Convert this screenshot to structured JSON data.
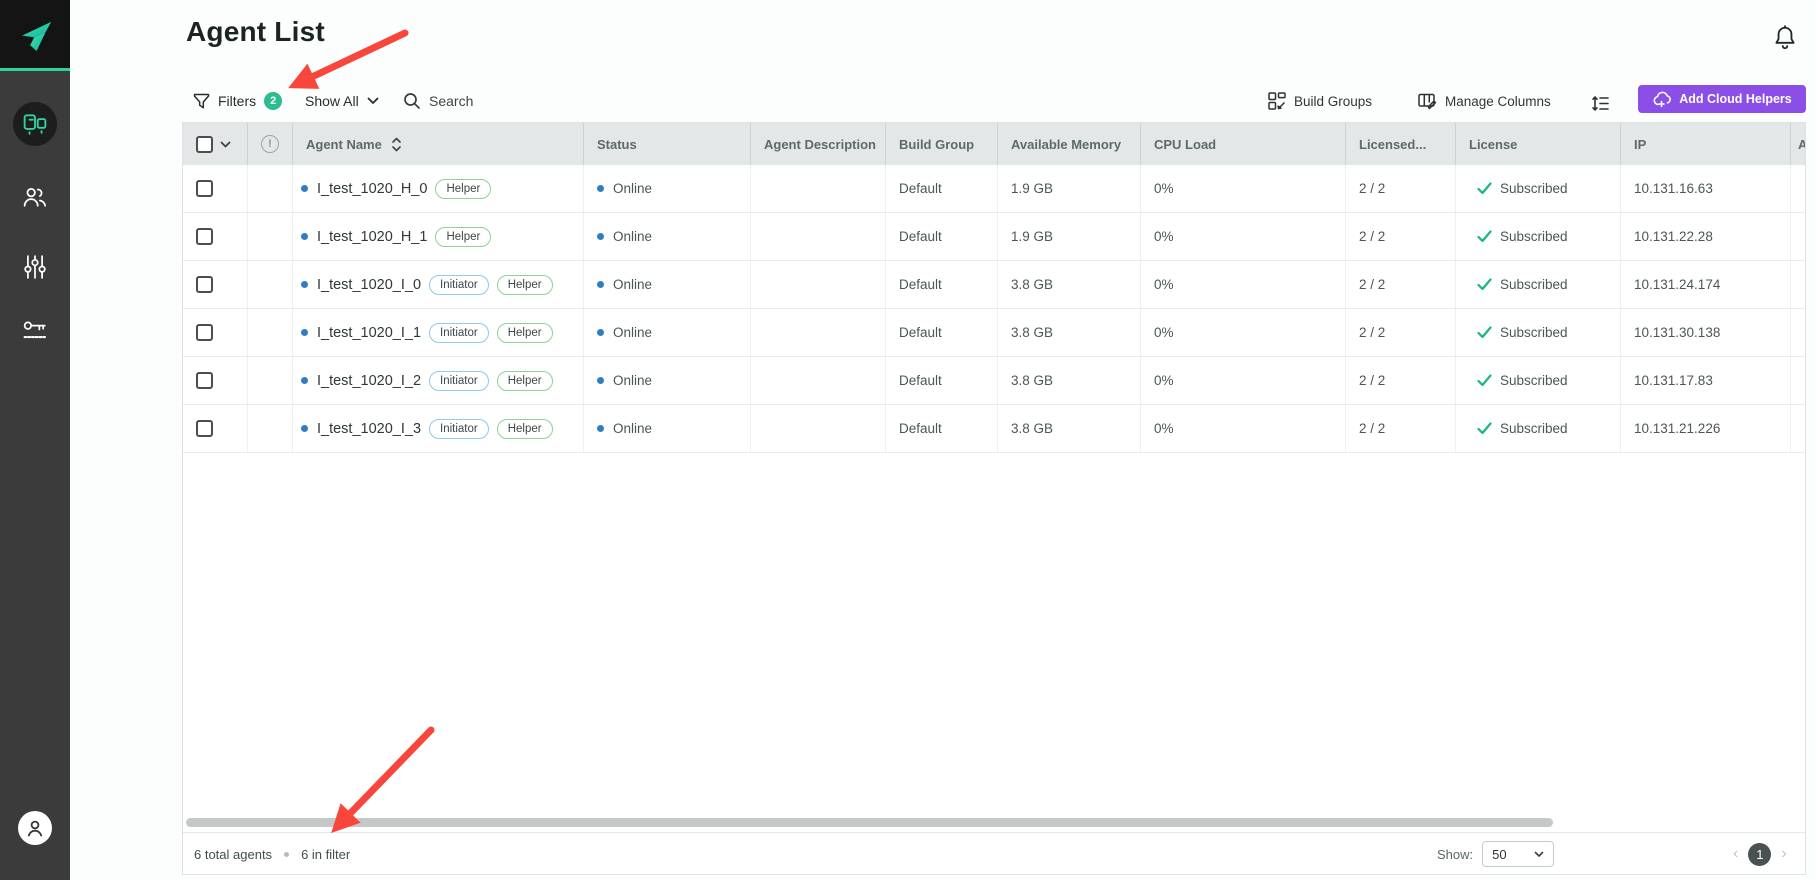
{
  "colors": {
    "accent_green": "#2abd8f",
    "purple": "#8b4fe8",
    "blue_dot": "#2d7ec4",
    "check_green": "#1cb38b",
    "arrow_red": "#f9463c",
    "sidebar_bg": "#3b3b3b"
  },
  "sidebar": {
    "logo_icon": "brand-logo-icon",
    "items": [
      {
        "icon": "agents-icon",
        "active": true
      },
      {
        "icon": "users-icon",
        "active": false
      },
      {
        "icon": "settings-sliders-icon",
        "active": false
      },
      {
        "icon": "license-key-icon",
        "active": false
      }
    ],
    "avatar_icon": "user-avatar-icon"
  },
  "header": {
    "title": "Agent List",
    "bell_icon": "notifications-bell-icon"
  },
  "toolbar": {
    "filters_label": "Filters",
    "filters_badge": "2",
    "show_all_label": "Show All",
    "search_label": "Search",
    "build_groups_label": "Build Groups",
    "manage_columns_label": "Manage Columns",
    "add_cloud_helpers_label": "Add Cloud Helpers"
  },
  "table": {
    "headers": {
      "agent_name": "Agent Name",
      "status": "Status",
      "agent_description": "Agent Description",
      "build_group": "Build Group",
      "available_memory": "Available Memory",
      "cpu_load": "CPU Load",
      "licensed": "Licensed...",
      "license": "License",
      "ip": "IP",
      "clipped": "A"
    },
    "rows": [
      {
        "name": "I_test_1020_H_0",
        "badges": [
          "Helper"
        ],
        "status": "Online",
        "description": "",
        "build_group": "Default",
        "memory": "1.9 GB",
        "cpu": "0%",
        "licensed": "2 / 2",
        "license": "Subscribed",
        "ip": "10.131.16.63"
      },
      {
        "name": "I_test_1020_H_1",
        "badges": [
          "Helper"
        ],
        "status": "Online",
        "description": "",
        "build_group": "Default",
        "memory": "1.9 GB",
        "cpu": "0%",
        "licensed": "2 / 2",
        "license": "Subscribed",
        "ip": "10.131.22.28"
      },
      {
        "name": "I_test_1020_I_0",
        "badges": [
          "Initiator",
          "Helper"
        ],
        "status": "Online",
        "description": "",
        "build_group": "Default",
        "memory": "3.8 GB",
        "cpu": "0%",
        "licensed": "2 / 2",
        "license": "Subscribed",
        "ip": "10.131.24.174"
      },
      {
        "name": "I_test_1020_I_1",
        "badges": [
          "Initiator",
          "Helper"
        ],
        "status": "Online",
        "description": "",
        "build_group": "Default",
        "memory": "3.8 GB",
        "cpu": "0%",
        "licensed": "2 / 2",
        "license": "Subscribed",
        "ip": "10.131.30.138"
      },
      {
        "name": "I_test_1020_I_2",
        "badges": [
          "Initiator",
          "Helper"
        ],
        "status": "Online",
        "description": "",
        "build_group": "Default",
        "memory": "3.8 GB",
        "cpu": "0%",
        "licensed": "2 / 2",
        "license": "Subscribed",
        "ip": "10.131.17.83"
      },
      {
        "name": "I_test_1020_I_3",
        "badges": [
          "Initiator",
          "Helper"
        ],
        "status": "Online",
        "description": "",
        "build_group": "Default",
        "memory": "3.8 GB",
        "cpu": "0%",
        "licensed": "2 / 2",
        "license": "Subscribed",
        "ip": "10.131.21.226"
      }
    ]
  },
  "footer": {
    "total_label": "6 total agents",
    "in_filter_label": "6 in filter",
    "show_label": "Show:",
    "page_size": "50",
    "current_page": "1"
  }
}
